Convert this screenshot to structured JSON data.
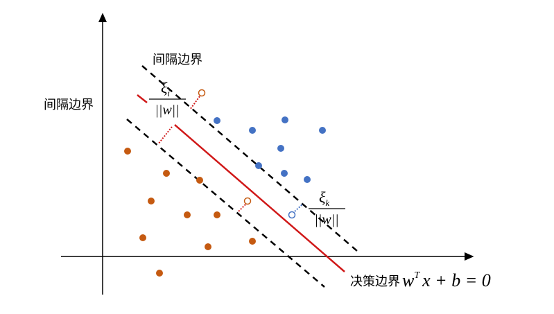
{
  "labels": {
    "margin_top": "间隔边界",
    "margin_left": "间隔边界",
    "decision": "决策边界"
  },
  "formula": {
    "w": "w",
    "superscript": "T",
    "rest": "x + b = 0"
  },
  "slack_i": {
    "numerator": "ξ",
    "subscript": "i",
    "denominator": "||w||"
  },
  "slack_k": {
    "numerator": "ξ",
    "subscript": "k",
    "denominator": "||w||"
  }
}
